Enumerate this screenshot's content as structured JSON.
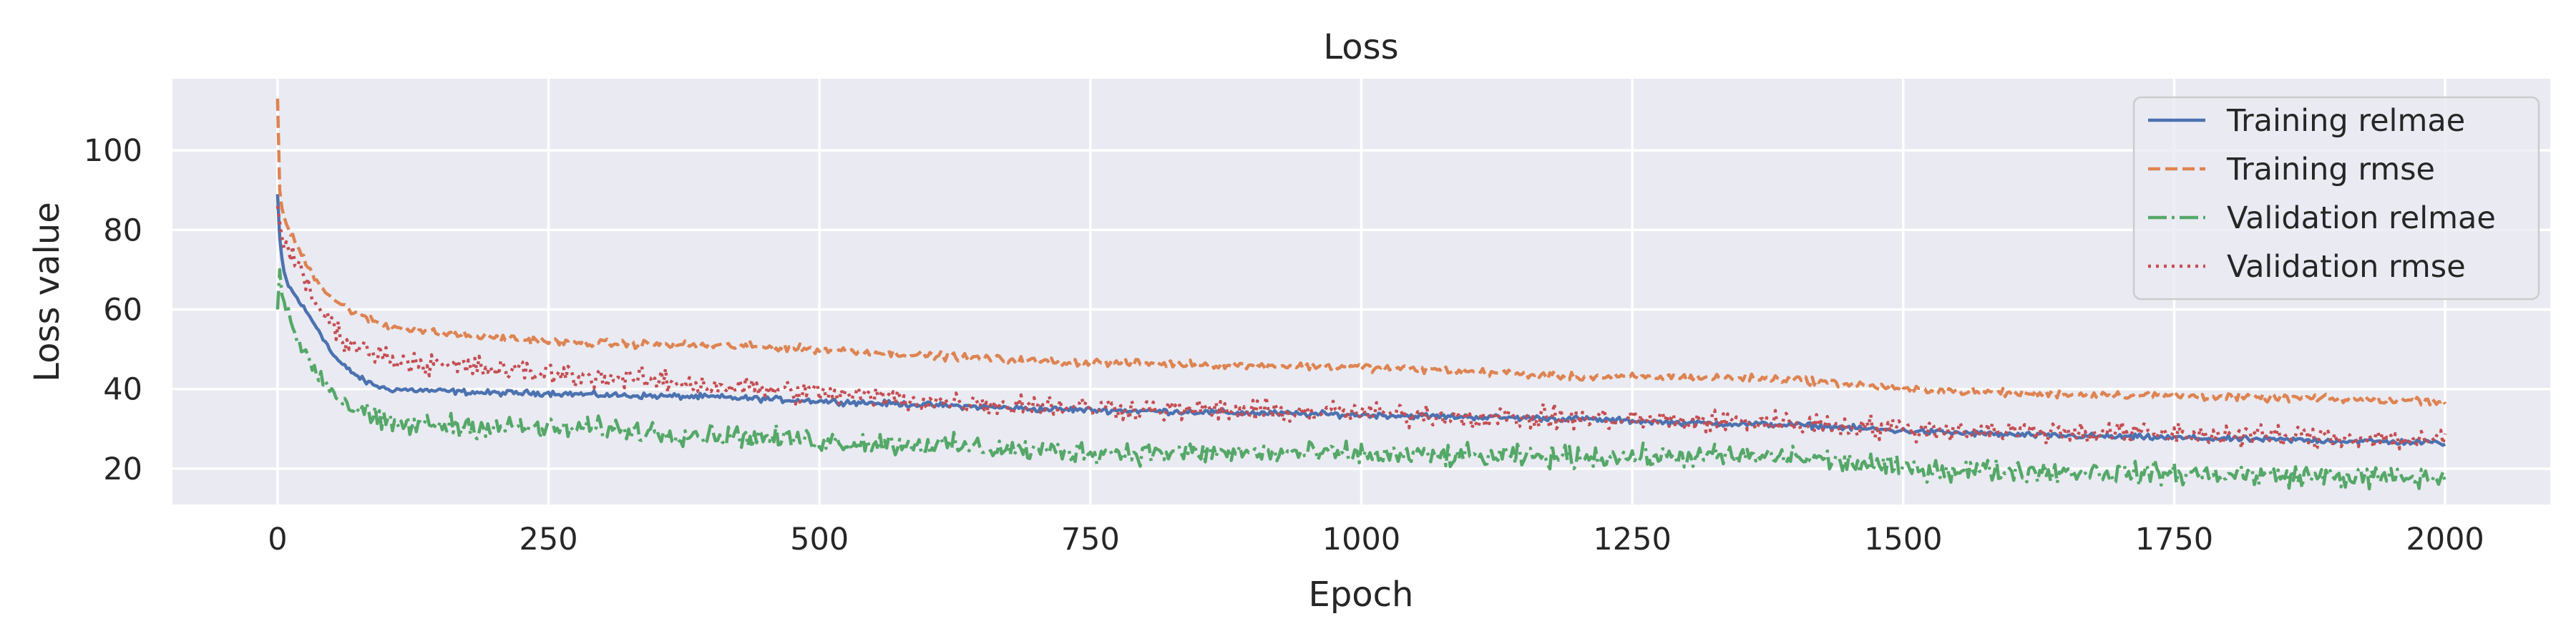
{
  "chart_data": {
    "type": "line",
    "title": "Loss",
    "xlabel": "Epoch",
    "ylabel": "Loss value",
    "xlim": [
      -97,
      2097
    ],
    "ylim": [
      11,
      118
    ],
    "xticks": [
      0,
      250,
      500,
      750,
      1000,
      1250,
      1500,
      1750,
      2000
    ],
    "yticks": [
      20,
      40,
      60,
      80,
      100
    ],
    "grid": true,
    "legend_position": "top-right",
    "background": "#eaeaf2",
    "series": [
      {
        "name": "Training relmae",
        "color": "#4c72b0",
        "dash": "solid",
        "noise": 0.6,
        "x": [
          0,
          2,
          5,
          10,
          20,
          30,
          40,
          50,
          60,
          80,
          100,
          150,
          200,
          250,
          300,
          400,
          500,
          600,
          700,
          800,
          900,
          1000,
          1100,
          1200,
          1300,
          1400,
          1500,
          1600,
          1700,
          1800,
          1900,
          2000
        ],
        "y": [
          89,
          78,
          70,
          66,
          62,
          58,
          54,
          49,
          46,
          42,
          40,
          39.5,
          39,
          39,
          38.5,
          38,
          37,
          36,
          35,
          34.5,
          34,
          33.5,
          33,
          32.5,
          31.5,
          31,
          29.5,
          28.5,
          28,
          27.5,
          27,
          26.5
        ]
      },
      {
        "name": "Training rmse",
        "color": "#dd8452",
        "dash": "dashed",
        "noise": 0.8,
        "x": [
          0,
          2,
          5,
          10,
          20,
          30,
          40,
          50,
          60,
          80,
          100,
          150,
          200,
          250,
          300,
          400,
          500,
          600,
          700,
          800,
          900,
          1000,
          1100,
          1200,
          1300,
          1400,
          1500,
          1600,
          1700,
          1800,
          1900,
          2000
        ],
        "y": [
          113,
          90,
          84,
          80,
          75,
          70,
          66,
          63,
          61,
          58,
          56,
          54,
          53,
          52,
          51.5,
          51,
          50,
          48.5,
          47,
          46.5,
          46,
          45.5,
          44.5,
          43,
          43,
          42.5,
          40,
          39,
          38.5,
          38,
          37.5,
          37
        ]
      },
      {
        "name": "Validation relmae",
        "color": "#55a868",
        "dash": "dashdot",
        "noise": 2.3,
        "x": [
          0,
          2,
          5,
          10,
          20,
          30,
          40,
          50,
          60,
          80,
          100,
          150,
          200,
          250,
          300,
          400,
          500,
          600,
          700,
          800,
          900,
          1000,
          1100,
          1200,
          1300,
          1400,
          1500,
          1600,
          1700,
          1800,
          1900,
          2000
        ],
        "y": [
          60,
          70,
          62,
          57,
          52,
          47,
          43,
          40,
          37,
          34,
          31,
          31,
          30.5,
          30,
          30,
          28.5,
          27,
          26,
          24.5,
          24,
          24,
          23.5,
          23,
          23,
          23,
          23,
          20,
          19.5,
          19,
          18.5,
          18,
          17.5
        ]
      },
      {
        "name": "Validation rmse",
        "color": "#c44e52",
        "dash": "dotted",
        "noise": 2.4,
        "x": [
          0,
          2,
          5,
          10,
          20,
          30,
          40,
          50,
          60,
          80,
          100,
          150,
          200,
          250,
          300,
          400,
          500,
          600,
          700,
          800,
          900,
          1000,
          1100,
          1200,
          1300,
          1400,
          1500,
          1600,
          1700,
          1800,
          1900,
          2000
        ],
        "y": [
          86,
          82,
          78,
          75,
          70,
          64,
          60,
          56,
          53,
          50,
          48,
          46,
          45,
          44,
          43,
          41,
          39,
          37,
          36,
          35,
          34.5,
          34,
          33,
          32.5,
          32,
          31.5,
          30,
          29.5,
          29,
          28.5,
          28,
          27
        ]
      }
    ]
  }
}
